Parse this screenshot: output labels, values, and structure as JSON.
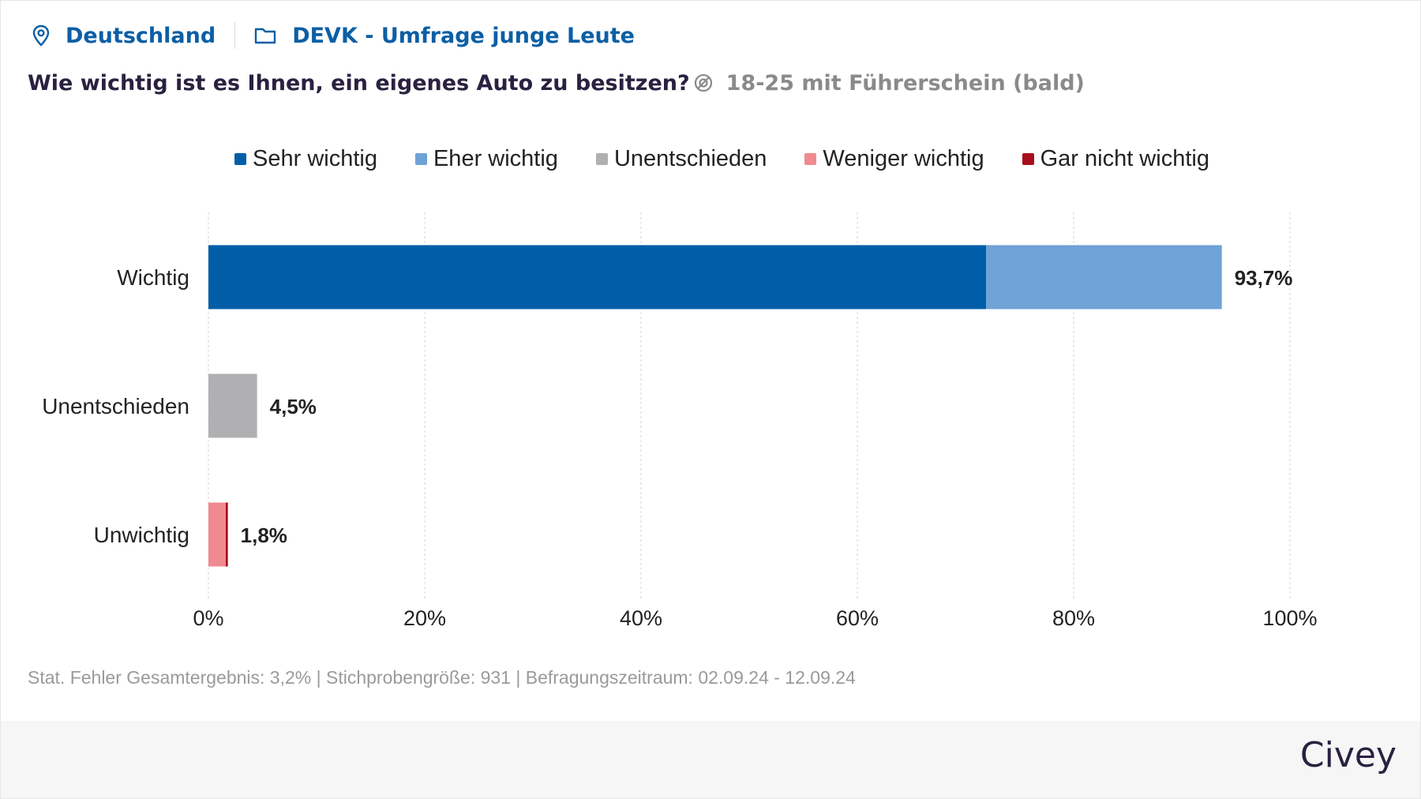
{
  "header": {
    "region": "Deutschland",
    "survey": "DEVK - Umfrage junge Leute",
    "region_icon": "location-pin-icon",
    "survey_icon": "folder-icon"
  },
  "question": "Wie wichtig ist es Ihnen, ein eigenes Auto zu besitzen?",
  "audience": "18-25 mit Führerschein (bald)",
  "audience_icon": "target-filter-icon",
  "legend": [
    {
      "label": "Sehr wichtig",
      "color": "#005ea8"
    },
    {
      "label": "Eher wichtig",
      "color": "#6fa2d6"
    },
    {
      "label": "Unentschieden",
      "color": "#b0b0b2"
    },
    {
      "label": "Weniger wichtig",
      "color": "#ef8a90"
    },
    {
      "label": "Gar nicht wichtig",
      "color": "#a80d1c"
    }
  ],
  "chart_data": {
    "type": "bar",
    "orientation": "horizontal",
    "stacked": true,
    "categories": [
      "Wichtig",
      "Unentschieden",
      "Unwichtig"
    ],
    "series": [
      {
        "name": "Sehr wichtig",
        "color": "#005ea8",
        "values": [
          71.9,
          0,
          0
        ]
      },
      {
        "name": "Eher wichtig",
        "color": "#6fa2d6",
        "values": [
          21.8,
          0,
          0
        ]
      },
      {
        "name": "Unentschieden",
        "color": "#b0b0b2",
        "values": [
          0,
          4.5,
          0
        ]
      },
      {
        "name": "Weniger wichtig",
        "color": "#ef8a90",
        "values": [
          0,
          0,
          1.6
        ]
      },
      {
        "name": "Gar nicht wichtig",
        "color": "#a80d1c",
        "values": [
          0,
          0,
          0.2
        ]
      }
    ],
    "totals": [
      "93,7%",
      "4,5%",
      "1,8%"
    ],
    "x_ticks": [
      "0%",
      "20%",
      "40%",
      "60%",
      "80%",
      "100%"
    ],
    "xlim": [
      0,
      100
    ],
    "grid": true,
    "legend_position": "top"
  },
  "footnote": "Stat. Fehler Gesamtergebnis: 3,2% | Stichprobengröße: 931 | Befragungszeitraum: 02.09.24 - 12.09.24",
  "brand": "Civey"
}
